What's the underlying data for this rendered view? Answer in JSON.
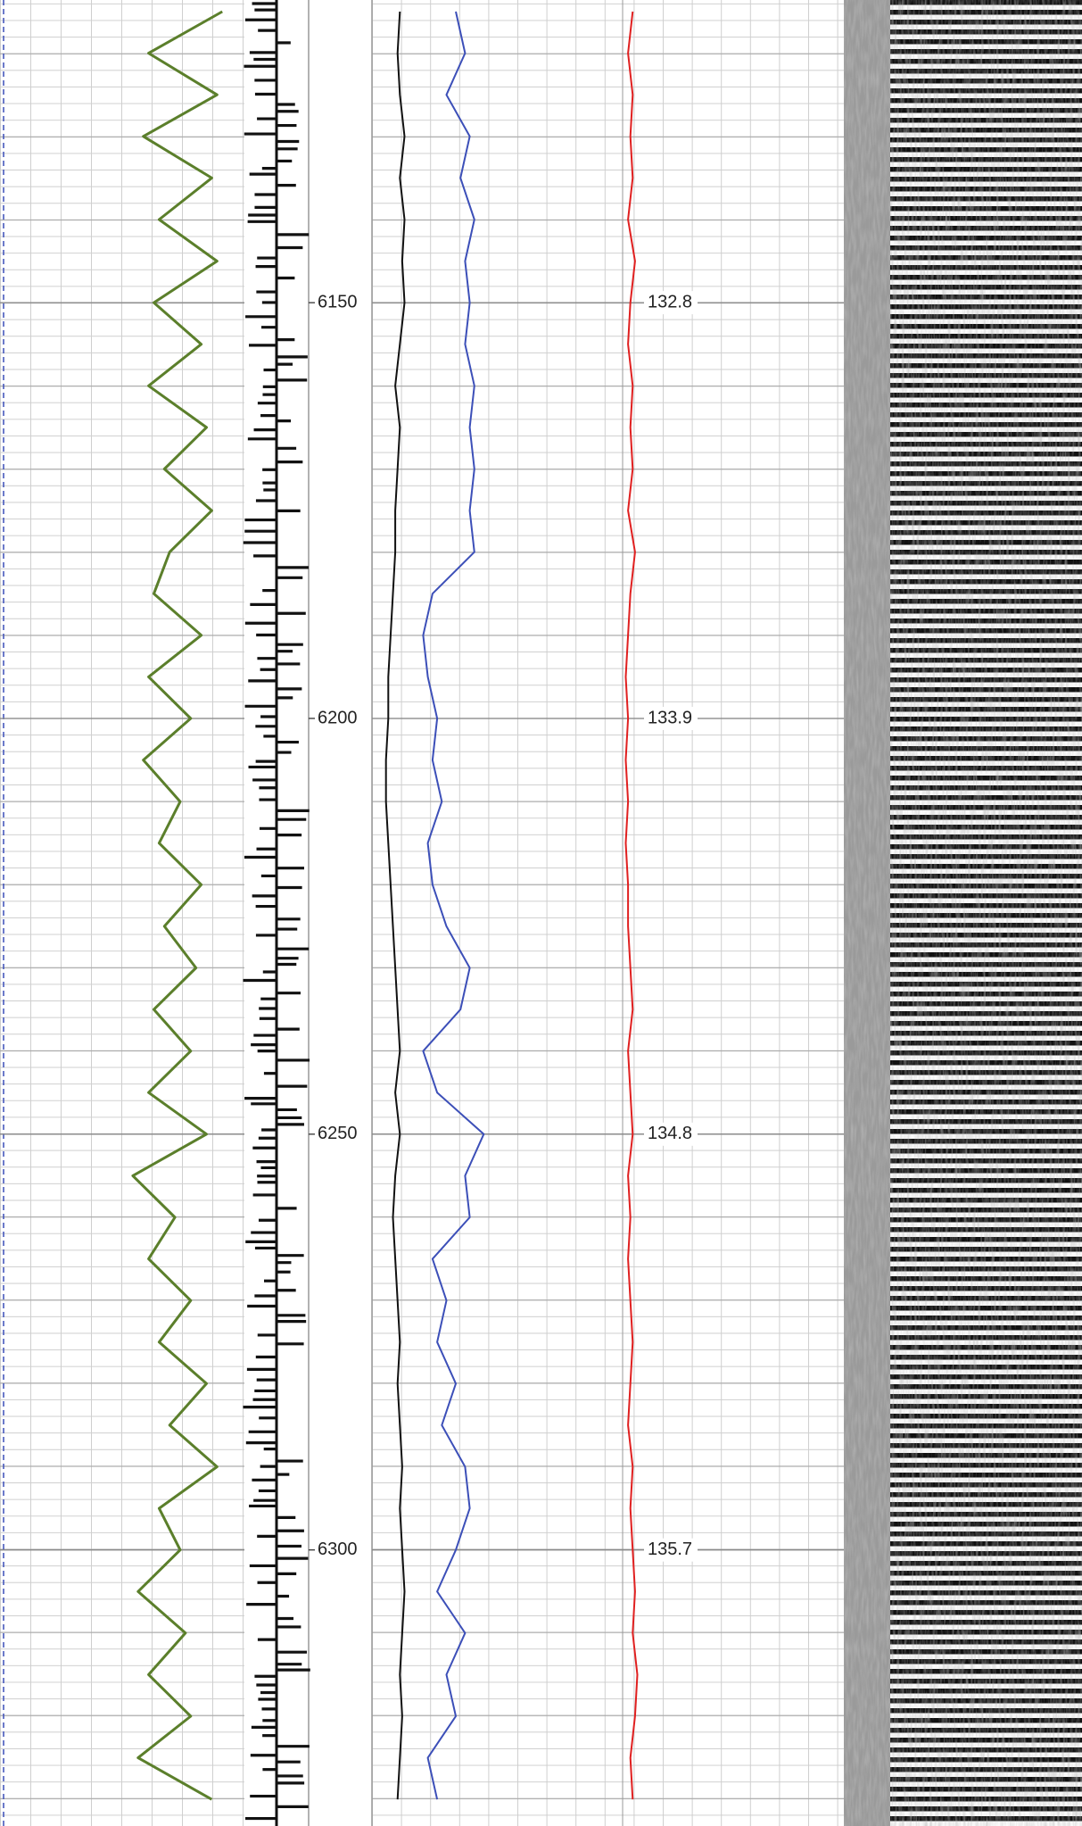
{
  "chart_data": {
    "type": "line",
    "ylim": [
      6113.6,
      6333.2
    ],
    "yticks": [
      6150,
      6200,
      6250,
      6300
    ],
    "time_labels": [
      132.8,
      133.9,
      134.8,
      135.7
    ],
    "x": [
      6115,
      6120,
      6125,
      6130,
      6135,
      6140,
      6145,
      6150,
      6155,
      6160,
      6165,
      6170,
      6175,
      6180,
      6185,
      6190,
      6195,
      6200,
      6205,
      6210,
      6215,
      6220,
      6225,
      6230,
      6235,
      6240,
      6245,
      6250,
      6255,
      6260,
      6265,
      6270,
      6275,
      6280,
      6285,
      6290,
      6295,
      6300,
      6305,
      6310,
      6315,
      6320,
      6325,
      6330
    ],
    "series": [
      {
        "color": "#5b7f2b",
        "track": 1,
        "xlim": [
          0,
          100
        ],
        "values": [
          90,
          20,
          85,
          15,
          80,
          30,
          85,
          25,
          70,
          20,
          75,
          35,
          80,
          40,
          25,
          70,
          20,
          60,
          15,
          50,
          30,
          70,
          35,
          65,
          25,
          60,
          20,
          75,
          5,
          45,
          20,
          60,
          30,
          75,
          40,
          85,
          30,
          50,
          10,
          55,
          20,
          60,
          10,
          80
        ]
      },
      {
        "color": "#111111",
        "track": 2,
        "xlim": [
          0,
          100
        ],
        "values": [
          6,
          5.5,
          6,
          7,
          6,
          7,
          6.5,
          7,
          6,
          5,
          6,
          5.5,
          5,
          5,
          4.5,
          4,
          3.5,
          3.5,
          3,
          3,
          3.5,
          4,
          4.5,
          5,
          5.5,
          6,
          5,
          6,
          5,
          4.5,
          5,
          5.5,
          6,
          5.5,
          6,
          6.5,
          6,
          6.5,
          7,
          6.5,
          6,
          6.5,
          6,
          5.5
        ]
      },
      {
        "color": "#3c4fb8",
        "track": 2,
        "xlim": [
          0,
          100
        ],
        "values": [
          18,
          20,
          16,
          21,
          19,
          22,
          20,
          21,
          20,
          22,
          21,
          22,
          21,
          22,
          13,
          11,
          12,
          14,
          13,
          15,
          12,
          13,
          16,
          21,
          19,
          11,
          14,
          24,
          20,
          21,
          13,
          16,
          14,
          18,
          15,
          20,
          21,
          18,
          14,
          20,
          16,
          18,
          12,
          14
        ]
      },
      {
        "color": "#e02020",
        "track": 2,
        "xlim": [
          0,
          100
        ],
        "values": [
          56,
          55,
          56,
          55.5,
          56,
          55,
          56.5,
          55.5,
          55,
          56,
          55.5,
          56,
          55,
          56.5,
          55.5,
          55,
          54.5,
          55,
          54.5,
          55,
          54.5,
          55,
          55,
          55.5,
          56,
          55,
          55.5,
          56,
          55,
          55.5,
          55,
          55.5,
          56,
          55.5,
          55,
          56,
          55.5,
          56,
          56.5,
          56,
          57,
          56.5,
          55.5,
          56
        ]
      }
    ]
  }
}
